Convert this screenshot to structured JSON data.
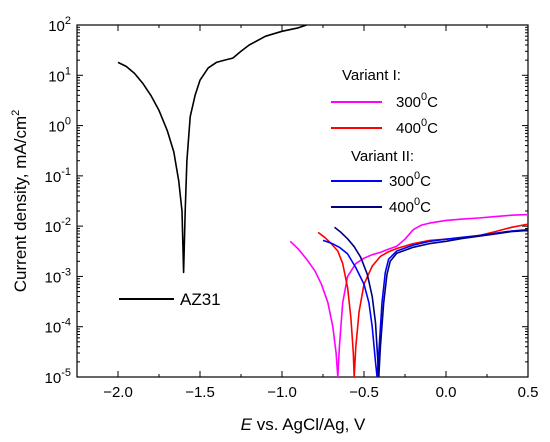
{
  "chart_data": {
    "type": "line",
    "xlabel_italic": "E",
    "xlabel_rest": " vs. AgCl/Ag, V",
    "ylabel_main": "Current density, mA/cm",
    "ylabel_sup": "2",
    "scale": {
      "y": "log"
    },
    "xlim": [
      -2.25,
      0.5
    ],
    "ylim": [
      1e-05,
      100
    ],
    "x_ticks": [
      {
        "v": -2.0,
        "label": "−2.0"
      },
      {
        "v": -1.5,
        "label": "−1.5"
      },
      {
        "v": -1.0,
        "label": "−1.0"
      },
      {
        "v": -0.5,
        "label": "−0.5"
      },
      {
        "v": 0.0,
        "label": "0.0"
      },
      {
        "v": 0.5,
        "label": "0.5"
      }
    ],
    "y_ticks": [
      {
        "e": 2,
        "exp": "2"
      },
      {
        "e": 1,
        "exp": "1"
      },
      {
        "e": 0,
        "exp": "0"
      },
      {
        "e": -1,
        "exp": "-1"
      },
      {
        "e": -2,
        "exp": "-2"
      },
      {
        "e": -3,
        "exp": "-3"
      },
      {
        "e": -4,
        "exp": "-4"
      },
      {
        "e": -5,
        "exp": "-5"
      }
    ],
    "y_tick_base": "10",
    "legend": {
      "group1": "Variant I:",
      "group2": "Variant II:",
      "items": [
        {
          "series": 1,
          "num": "300",
          "sup": "0",
          "unit": "C"
        },
        {
          "series": 2,
          "num": "400",
          "sup": "0",
          "unit": "C"
        },
        {
          "series": 3,
          "num": "300",
          "sup": "0",
          "unit": "C"
        },
        {
          "series": 4,
          "num": "400",
          "sup": "0",
          "unit": "C"
        }
      ],
      "az31_label": "AZ31"
    },
    "series": [
      {
        "name": "AZ31",
        "color": "#000000",
        "points": [
          [
            -2.0,
            18
          ],
          [
            -1.95,
            15
          ],
          [
            -1.9,
            11
          ],
          [
            -1.85,
            7
          ],
          [
            -1.8,
            4
          ],
          [
            -1.75,
            2
          ],
          [
            -1.7,
            0.8
          ],
          [
            -1.66,
            0.3
          ],
          [
            -1.63,
            0.08
          ],
          [
            -1.61,
            0.02
          ],
          [
            -1.6,
            0.0012
          ],
          [
            -1.59,
            0.02
          ],
          [
            -1.58,
            0.2
          ],
          [
            -1.56,
            1.5
          ],
          [
            -1.53,
            4
          ],
          [
            -1.5,
            8
          ],
          [
            -1.45,
            14
          ],
          [
            -1.4,
            18
          ],
          [
            -1.35,
            20
          ],
          [
            -1.3,
            22
          ],
          [
            -1.25,
            30
          ],
          [
            -1.2,
            40
          ],
          [
            -1.1,
            60
          ],
          [
            -1.0,
            75
          ],
          [
            -0.9,
            88
          ],
          [
            -0.85,
            100
          ]
        ]
      },
      {
        "name": "300C",
        "color": "#ff00ff",
        "points": [
          [
            -0.95,
            0.005
          ],
          [
            -0.9,
            0.0035
          ],
          [
            -0.85,
            0.0022
          ],
          [
            -0.8,
            0.0013
          ],
          [
            -0.76,
            0.0007
          ],
          [
            -0.72,
            0.0003
          ],
          [
            -0.69,
            0.0001
          ],
          [
            -0.67,
            3e-05
          ],
          [
            -0.66,
            1e-05
          ],
          [
            -0.65,
            4e-05
          ],
          [
            -0.63,
            0.0003
          ],
          [
            -0.6,
            0.001
          ],
          [
            -0.55,
            0.0018
          ],
          [
            -0.5,
            0.0023
          ],
          [
            -0.45,
            0.0027
          ],
          [
            -0.4,
            0.003
          ],
          [
            -0.35,
            0.0035
          ],
          [
            -0.3,
            0.004
          ],
          [
            -0.25,
            0.0055
          ],
          [
            -0.2,
            0.0085
          ],
          [
            -0.15,
            0.0105
          ],
          [
            -0.1,
            0.0115
          ],
          [
            0.0,
            0.013
          ],
          [
            0.1,
            0.0138
          ],
          [
            0.2,
            0.0145
          ],
          [
            0.3,
            0.0155
          ],
          [
            0.4,
            0.0165
          ],
          [
            0.5,
            0.017
          ]
        ]
      },
      {
        "name": "400C",
        "color": "#ff0000",
        "points": [
          [
            -0.78,
            0.0075
          ],
          [
            -0.74,
            0.006
          ],
          [
            -0.7,
            0.0045
          ],
          [
            -0.66,
            0.0032
          ],
          [
            -0.63,
            0.0018
          ],
          [
            -0.6,
            0.0006
          ],
          [
            -0.58,
            0.00015
          ],
          [
            -0.565,
            3e-05
          ],
          [
            -0.56,
            1e-05
          ],
          [
            -0.55,
            4e-05
          ],
          [
            -0.53,
            0.0002
          ],
          [
            -0.5,
            0.0007
          ],
          [
            -0.45,
            0.0016
          ],
          [
            -0.4,
            0.0025
          ],
          [
            -0.35,
            0.0031
          ],
          [
            -0.3,
            0.0036
          ],
          [
            -0.2,
            0.0045
          ],
          [
            -0.1,
            0.0052
          ],
          [
            0.0,
            0.0055
          ],
          [
            0.1,
            0.0058
          ],
          [
            0.2,
            0.0065
          ],
          [
            0.3,
            0.0078
          ],
          [
            0.4,
            0.0095
          ],
          [
            0.5,
            0.011
          ]
        ]
      },
      {
        "name": "300C",
        "color": "#0000ff",
        "points": [
          [
            -0.75,
            0.0052
          ],
          [
            -0.7,
            0.0046
          ],
          [
            -0.65,
            0.0038
          ],
          [
            -0.6,
            0.0028
          ],
          [
            -0.55,
            0.0015
          ],
          [
            -0.5,
            0.0007
          ],
          [
            -0.47,
            0.0003
          ],
          [
            -0.45,
            0.0001
          ],
          [
            -0.43,
            2e-05
          ],
          [
            -0.42,
            1e-05
          ],
          [
            -0.41,
            3e-05
          ],
          [
            -0.39,
            0.0003
          ],
          [
            -0.37,
            0.0012
          ],
          [
            -0.35,
            0.0022
          ],
          [
            -0.3,
            0.0032
          ],
          [
            -0.2,
            0.0042
          ],
          [
            -0.1,
            0.005
          ],
          [
            0.0,
            0.0055
          ],
          [
            0.1,
            0.006
          ],
          [
            0.2,
            0.0065
          ],
          [
            0.3,
            0.0072
          ],
          [
            0.4,
            0.008
          ],
          [
            0.5,
            0.0085
          ]
        ]
      },
      {
        "name": "400C",
        "color": "#000080",
        "points": [
          [
            -0.68,
            0.0095
          ],
          [
            -0.64,
            0.0075
          ],
          [
            -0.6,
            0.0056
          ],
          [
            -0.56,
            0.0039
          ],
          [
            -0.52,
            0.0024
          ],
          [
            -0.48,
            0.0011
          ],
          [
            -0.45,
            0.0004
          ],
          [
            -0.43,
            0.00012
          ],
          [
            -0.415,
            2e-05
          ],
          [
            -0.41,
            1e-05
          ],
          [
            -0.4,
            4e-05
          ],
          [
            -0.38,
            0.0003
          ],
          [
            -0.36,
            0.0011
          ],
          [
            -0.34,
            0.002
          ],
          [
            -0.3,
            0.0029
          ],
          [
            -0.2,
            0.0038
          ],
          [
            -0.1,
            0.0045
          ],
          [
            0.0,
            0.005
          ],
          [
            0.1,
            0.0057
          ],
          [
            0.2,
            0.0063
          ],
          [
            0.3,
            0.007
          ],
          [
            0.4,
            0.0078
          ],
          [
            0.5,
            0.0082
          ]
        ]
      }
    ]
  }
}
